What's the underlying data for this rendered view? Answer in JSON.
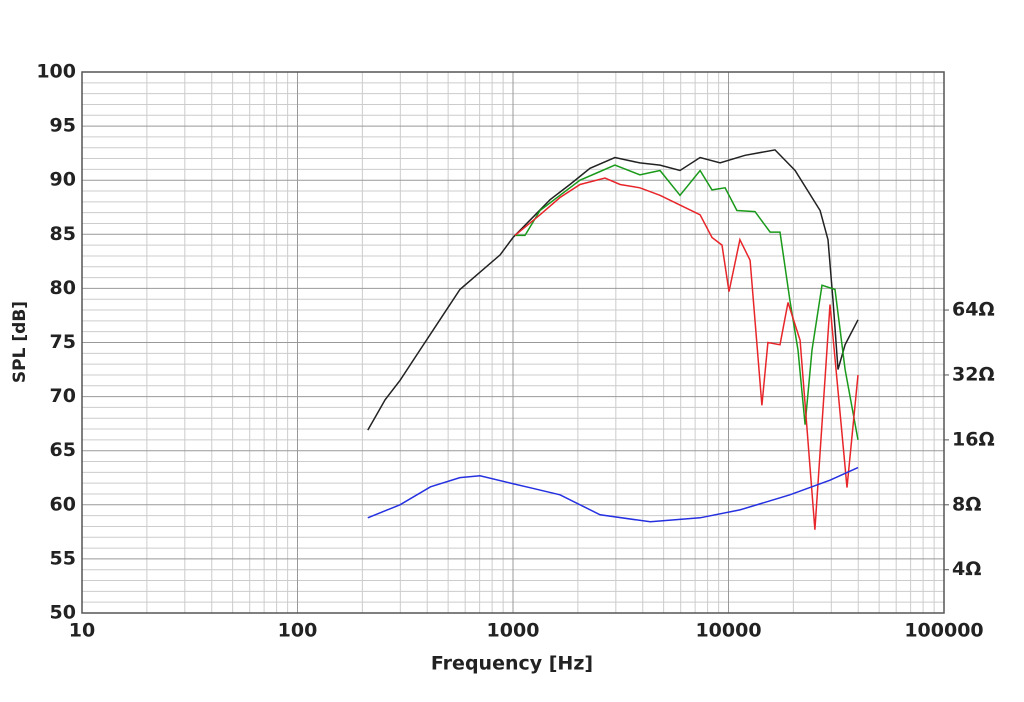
{
  "chart_data": {
    "type": "line",
    "xlabel": "Frequency [Hz]",
    "ylabel": "SPL [dB]",
    "xscale": "log",
    "y2scale": "log",
    "grid": true,
    "minor_grid": true,
    "xlim": [
      10,
      100000
    ],
    "xticks": [
      10,
      100,
      1000,
      10000,
      100000
    ],
    "ylim": [
      50,
      100
    ],
    "yticks": [
      50,
      55,
      60,
      65,
      70,
      75,
      80,
      85,
      90,
      95,
      100
    ],
    "y2lim": [
      2.52,
      812.7
    ],
    "y2ticks": [
      {
        "value": 4,
        "label": "4Ω"
      },
      {
        "value": 8,
        "label": "8Ω"
      },
      {
        "value": 16,
        "label": "16Ω"
      },
      {
        "value": 32,
        "label": "32Ω"
      },
      {
        "value": 64,
        "label": "64Ω"
      }
    ],
    "series": [
      {
        "color": "#222222",
        "x": [
          212,
          255,
          299,
          370,
          458,
          567,
          703,
          871,
          1000,
          1199,
          1486,
          1837,
          2276,
          2972,
          3881,
          4808,
          5957,
          7380,
          9140,
          11940,
          16440,
          20370,
          26600,
          28970,
          30550,
          32230,
          34750,
          39900
        ],
        "values": [
          66.9,
          69.7,
          71.5,
          74.3,
          77.1,
          79.9,
          81.5,
          83.1,
          84.7,
          86.3,
          88.2,
          89.6,
          91.1,
          92.1,
          91.6,
          91.4,
          90.9,
          92.1,
          91.6,
          92.3,
          92.8,
          90.9,
          87.2,
          84.5,
          78.9,
          72.5,
          74.8,
          77.1
        ]
      },
      {
        "color": "#1a9a1a",
        "x": [
          1021,
          1137,
          1334,
          1652,
          2046,
          2535,
          2972,
          3881,
          4808,
          5957,
          7380,
          8380,
          9640,
          10940,
          13270,
          15590,
          17340,
          19280,
          21020,
          22660,
          24400,
          27160,
          31190,
          34750,
          39900
        ],
        "values": [
          84.9,
          84.9,
          87.2,
          88.6,
          90.0,
          90.8,
          91.4,
          90.5,
          90.9,
          88.6,
          90.9,
          89.1,
          89.3,
          87.2,
          87.1,
          85.2,
          85.2,
          78.9,
          74.3,
          67.4,
          74.3,
          80.3,
          79.9,
          72.5,
          66.0
        ]
      },
      {
        "color": "#e8262a",
        "x": [
          1021,
          1334,
          1652,
          2046,
          2673,
          3141,
          3881,
          4808,
          5957,
          7380,
          8380,
          9330,
          10050,
          11300,
          12590,
          14290,
          15240,
          17340,
          18880,
          21480,
          25180,
          29580,
          35480,
          39900
        ],
        "values": [
          84.9,
          86.8,
          88.4,
          89.6,
          90.2,
          89.6,
          89.3,
          88.6,
          87.7,
          86.8,
          84.7,
          84.0,
          79.7,
          84.5,
          82.6,
          69.2,
          75.0,
          74.8,
          78.7,
          75.2,
          57.7,
          78.5,
          61.6,
          72.0
        ]
      },
      {
        "color": "#2530e0",
        "axis": "y2",
        "x": [
          212,
          299,
          414,
          567,
          703,
          967,
          1199,
          1652,
          2535,
          4336,
          7380,
          11300,
          19280,
          29580,
          39900
        ],
        "values": [
          6.96,
          8.0,
          9.7,
          10.7,
          10.9,
          10.1,
          9.6,
          8.9,
          7.19,
          6.67,
          6.96,
          7.58,
          8.9,
          10.4,
          11.9
        ]
      }
    ]
  }
}
